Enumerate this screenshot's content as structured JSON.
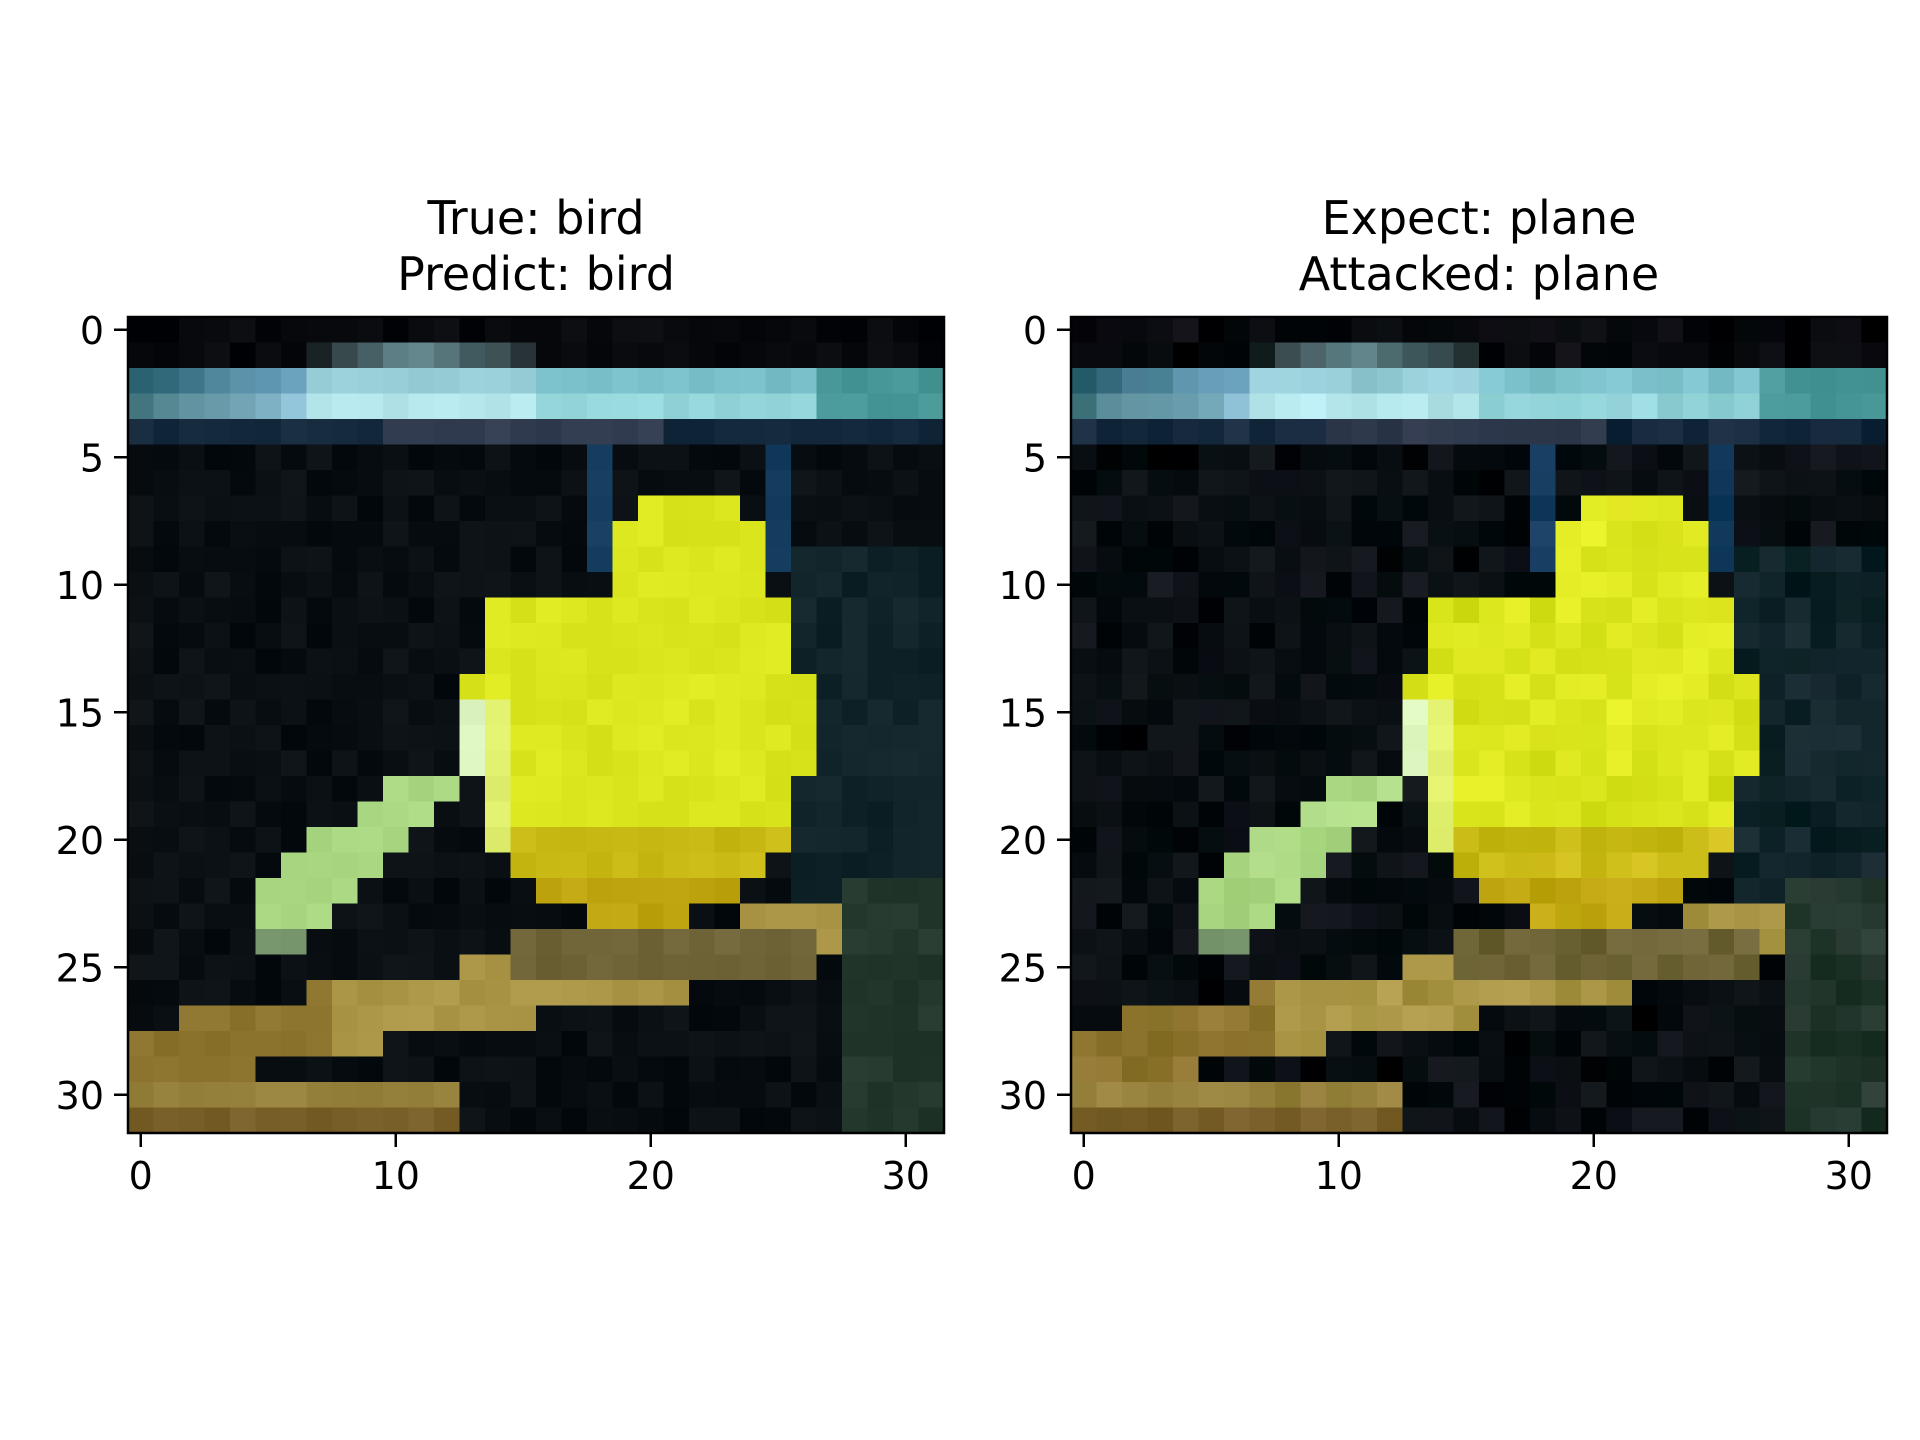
{
  "chart_data": [
    {
      "type": "heatmap",
      "title_lines": [
        "True: bird",
        "Predict: bird"
      ],
      "xlabel": "",
      "ylabel": "",
      "xlim": [
        -0.5,
        31.5
      ],
      "ylim": [
        31.5,
        -0.5
      ],
      "xticks": [
        "0",
        "10",
        "20",
        "30"
      ],
      "yticks": [
        "0",
        "5",
        "10",
        "15",
        "20",
        "25",
        "30"
      ],
      "grid": false,
      "image_size": [
        32,
        32
      ],
      "content": "32x32 pixel image of a yellow bird on a branch against a dark background"
    },
    {
      "type": "heatmap",
      "title_lines": [
        "Expect: plane",
        "Attacked: plane"
      ],
      "xlabel": "",
      "ylabel": "",
      "xlim": [
        -0.5,
        31.5
      ],
      "ylim": [
        31.5,
        -0.5
      ],
      "xticks": [
        "0",
        "10",
        "20",
        "30"
      ],
      "yticks": [
        "0",
        "5",
        "10",
        "15",
        "20",
        "25",
        "30"
      ],
      "grid": false,
      "image_size": [
        32,
        32
      ],
      "content": "adversarially perturbed 32x32 pixel image of the same yellow bird"
    }
  ],
  "colors": {
    "background": "#ffffff",
    "axes": "#000000",
    "bird_yellow": "#e6ee14",
    "bg_dark": "#070b10",
    "bar_cyan": "#9ad8dc"
  }
}
